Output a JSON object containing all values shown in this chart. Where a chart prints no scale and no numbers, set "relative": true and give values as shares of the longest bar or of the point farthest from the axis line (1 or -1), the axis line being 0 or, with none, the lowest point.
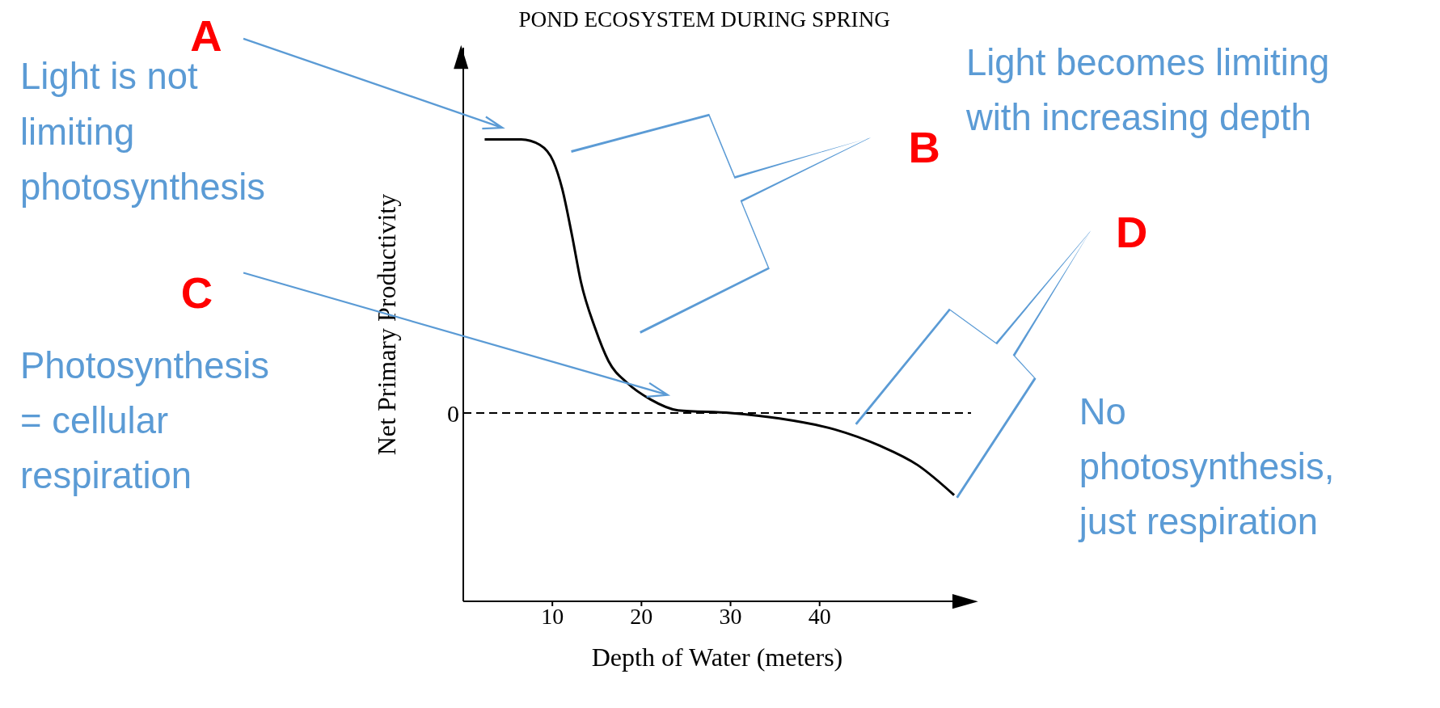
{
  "chart_data": {
    "type": "line",
    "title": "POND ECOSYSTEM DURING SPRING",
    "xlabel": "Depth of Water (meters)",
    "ylabel": "Net Primary Productivity",
    "relative": true,
    "color": "#000000",
    "marker": "none",
    "line_style": "solid",
    "x": [
      2.4,
      6.5,
      8.6,
      10.1,
      11.1,
      12.2,
      13.2,
      14.8,
      16.3,
      18.4,
      21,
      24.1,
      30,
      35.5,
      41.7,
      46.8,
      51,
      55.1
    ],
    "values": [
      1,
      1,
      0.98,
      0.92,
      0.82,
      0.65,
      0.48,
      0.31,
      0.19,
      0.11,
      0.05,
      0.01,
      0,
      -0.02,
      -0.06,
      -0.12,
      -0.19,
      -0.3
    ],
    "xlim": [
      0,
      57
    ],
    "xticks": [
      10,
      20,
      30,
      40
    ],
    "ref_lines": [
      {
        "axis": "y",
        "value": 0,
        "label": "0",
        "line_style": "dashed",
        "color": "#000000"
      }
    ],
    "annotations": [
      "A",
      "Light is not limiting photosynthesis",
      "B",
      "Light becomes limiting with increasing depth",
      "C",
      "Photosynthesis = cellular respiration",
      "D",
      "No photosynthesis, just respiration"
    ]
  }
}
